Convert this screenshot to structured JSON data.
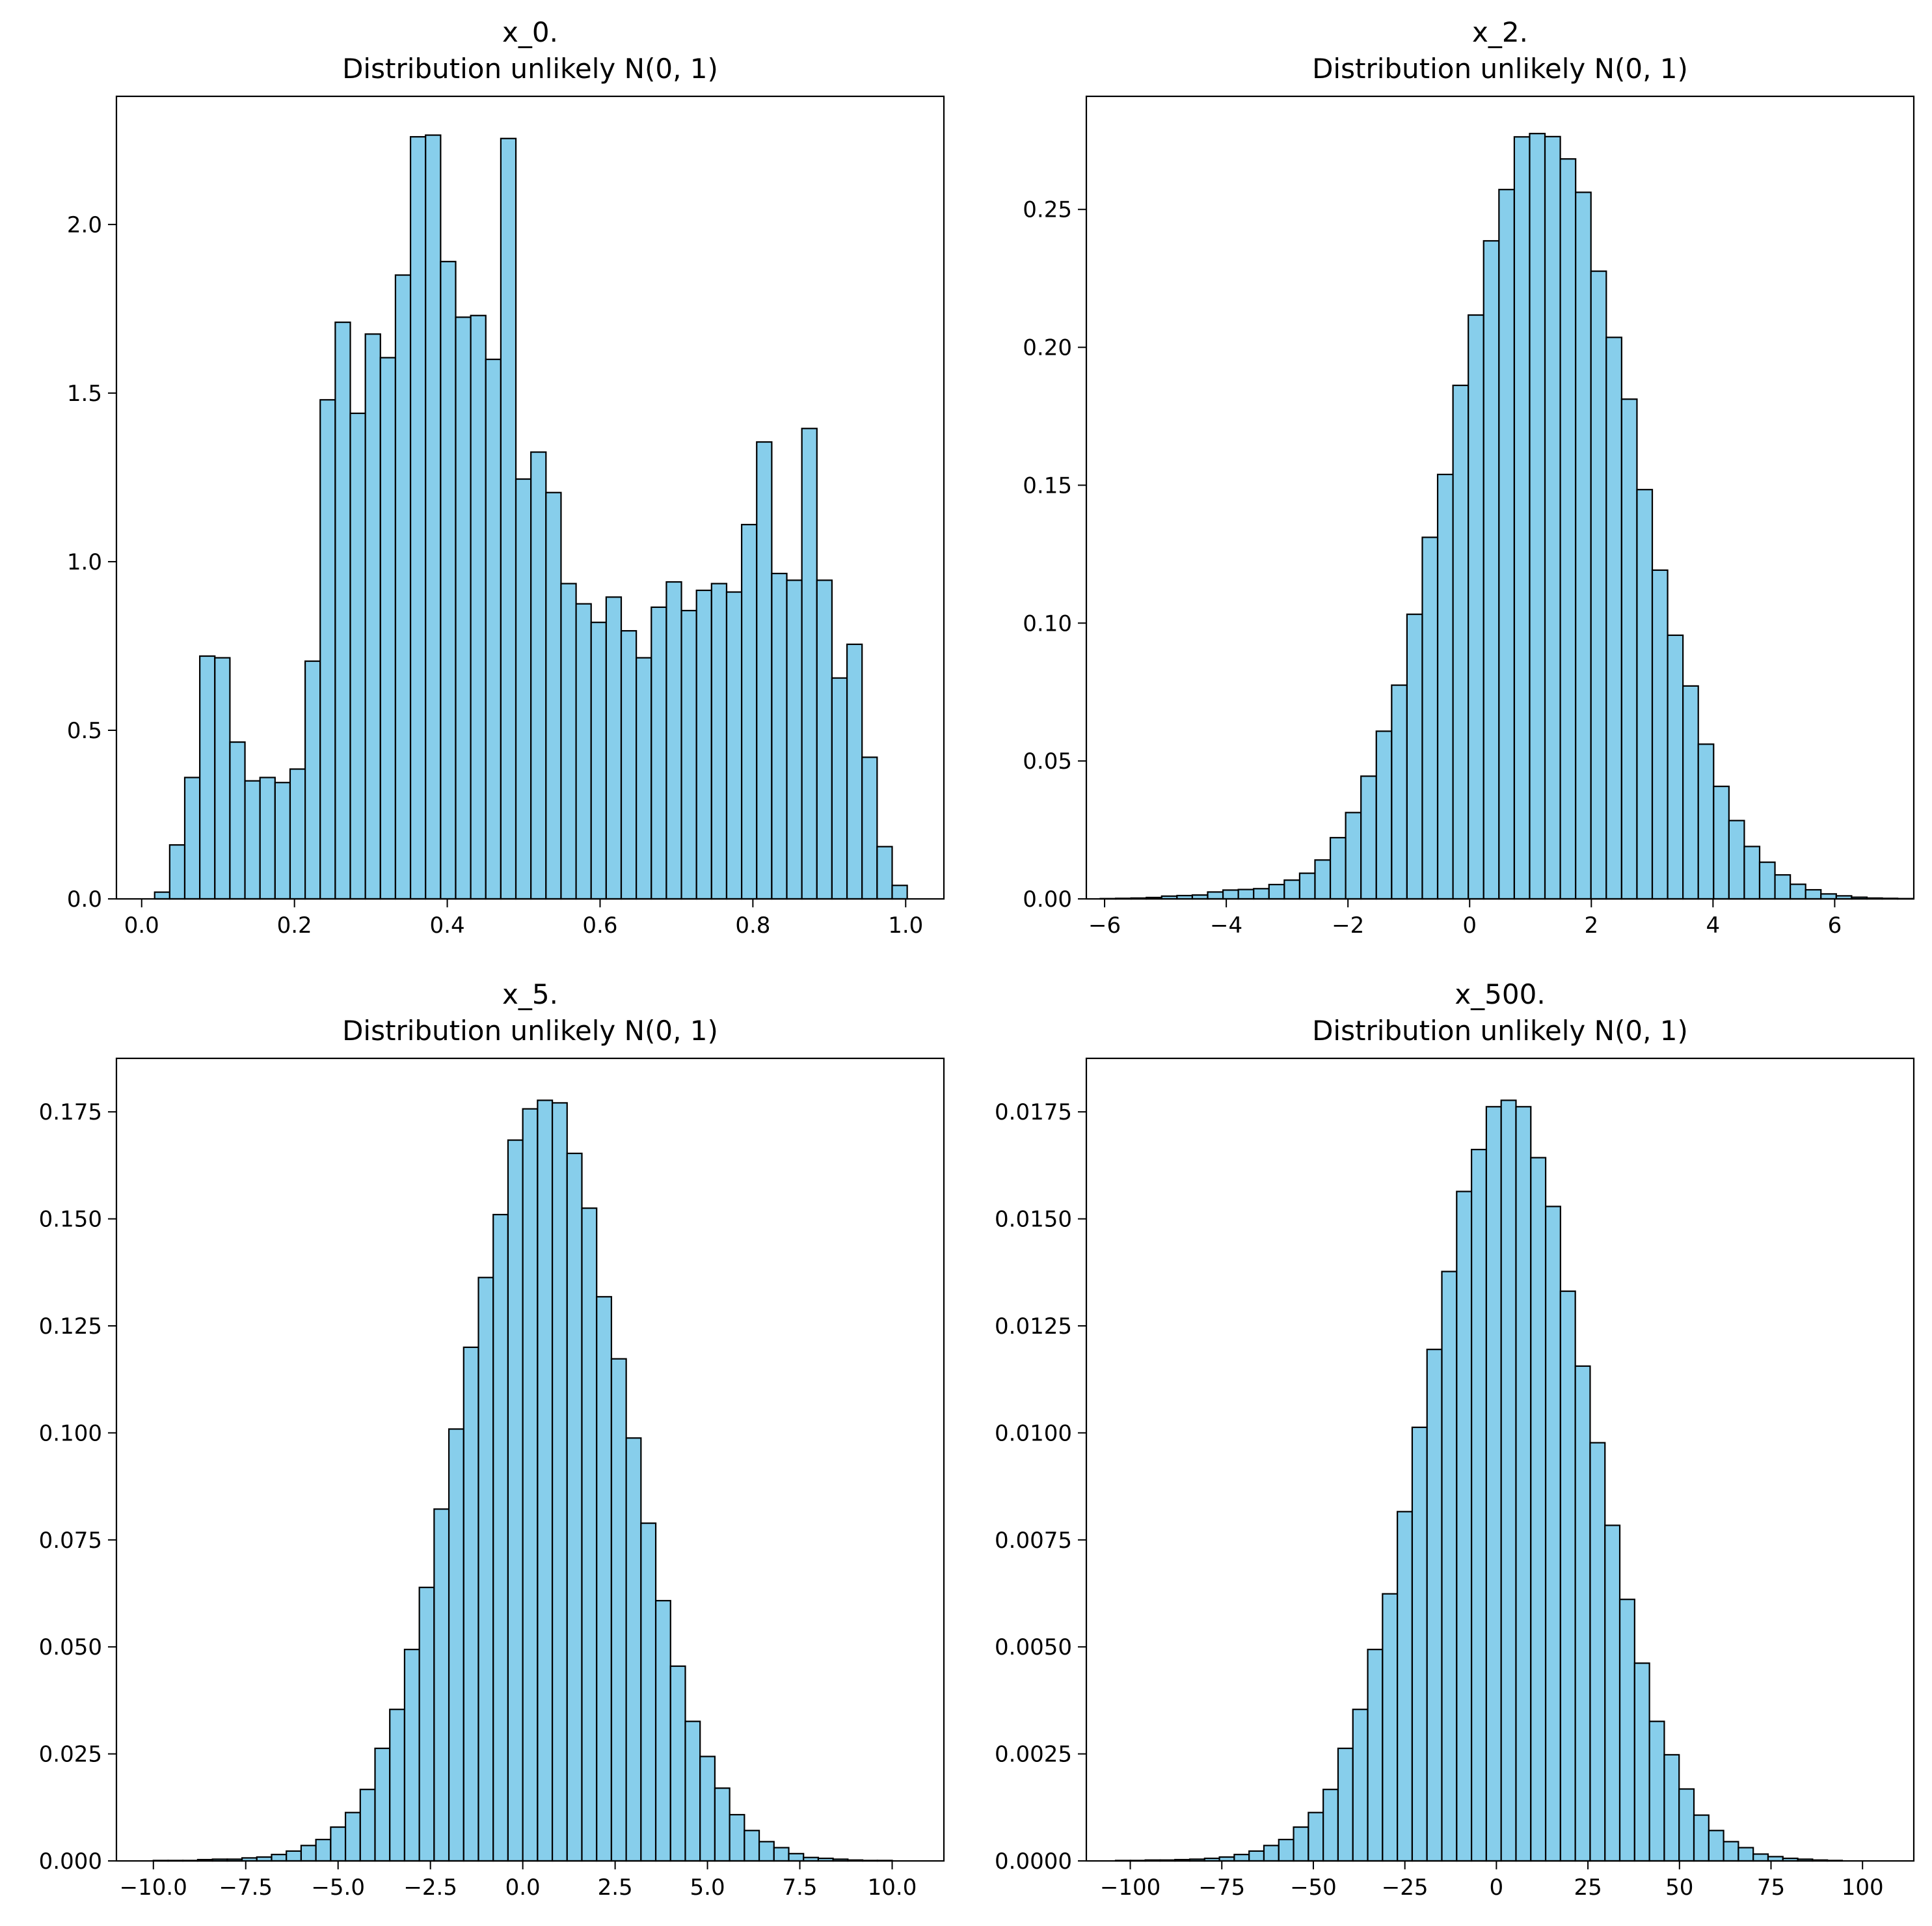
{
  "chart_data": [
    {
      "type": "bar",
      "title_line1": "x_0.",
      "title_line2": "Distribution unlikely N(0, 1)",
      "xlabel": "",
      "ylabel": "",
      "xlim": [
        -0.033,
        1.05
      ],
      "ylim": [
        0,
        2.38
      ],
      "xticks": [
        0.0,
        0.2,
        0.4,
        0.6,
        0.8,
        1.0
      ],
      "xtick_labels": [
        "0.0",
        "0.2",
        "0.4",
        "0.6",
        "0.8",
        "1.0"
      ],
      "yticks": [
        0.0,
        0.5,
        1.0,
        1.5,
        2.0
      ],
      "ytick_labels": [
        "0.0",
        "0.5",
        "1.0",
        "1.5",
        "2.0"
      ],
      "bin_start": 0.017,
      "bin_width": 0.0197,
      "values": [
        0.02,
        0.16,
        0.36,
        0.72,
        0.715,
        0.465,
        0.35,
        0.36,
        0.345,
        0.385,
        0.705,
        1.48,
        1.71,
        1.44,
        1.675,
        1.605,
        1.85,
        2.26,
        2.265,
        1.89,
        1.725,
        1.73,
        1.6,
        2.255,
        1.245,
        1.325,
        1.205,
        0.935,
        0.875,
        0.82,
        0.895,
        0.795,
        0.715,
        0.865,
        0.94,
        0.855,
        0.915,
        0.935,
        0.91,
        1.11,
        1.355,
        0.965,
        0.945,
        1.395,
        0.945,
        0.655,
        0.755,
        0.42,
        0.155,
        0.04
      ],
      "bar_color": "#87ceeb",
      "edge_color": "#000000",
      "grid": false,
      "legend": "none"
    },
    {
      "type": "bar",
      "title_line1": "x_2.",
      "title_line2": "Distribution unlikely N(0, 1)",
      "xlabel": "",
      "ylabel": "",
      "xlim": [
        -6.3,
        7.3
      ],
      "ylim": [
        0,
        0.291
      ],
      "xticks": [
        -6,
        -4,
        -2,
        0,
        2,
        4,
        6
      ],
      "xtick_labels": [
        "−6",
        "−4",
        "−2",
        "0",
        "2",
        "4",
        "6"
      ],
      "yticks": [
        0.0,
        0.05,
        0.1,
        0.15,
        0.2,
        0.25
      ],
      "ytick_labels": [
        "0.00",
        "0.05",
        "0.10",
        "0.15",
        "0.20",
        "0.25"
      ],
      "bin_start": -6.07,
      "bin_width": 0.252,
      "values": [
        0.0001,
        0.0002,
        0.0003,
        0.0005,
        0.001,
        0.0012,
        0.0014,
        0.0025,
        0.0032,
        0.0034,
        0.0037,
        0.0052,
        0.0068,
        0.0093,
        0.0141,
        0.0222,
        0.0313,
        0.0445,
        0.0608,
        0.0775,
        0.1032,
        0.1311,
        0.1539,
        0.1862,
        0.2117,
        0.2386,
        0.2572,
        0.2763,
        0.2775,
        0.2764,
        0.2683,
        0.2562,
        0.2276,
        0.2036,
        0.1812,
        0.1484,
        0.1192,
        0.0956,
        0.0772,
        0.0561,
        0.0408,
        0.0284,
        0.019,
        0.0133,
        0.0087,
        0.0053,
        0.0033,
        0.0018,
        0.0011,
        0.0006,
        0.0003,
        0.0002,
        0.0001
      ],
      "bar_color": "#87ceeb",
      "edge_color": "#000000",
      "grid": false,
      "legend": "none"
    },
    {
      "type": "bar",
      "title_line1": "x_5.",
      "title_line2": "Distribution unlikely N(0, 1)",
      "xlabel": "",
      "ylabel": "",
      "xlim": [
        -11.0,
        11.4
      ],
      "ylim": [
        0,
        0.1875
      ],
      "xticks": [
        -10.0,
        -7.5,
        -5.0,
        -2.5,
        0.0,
        2.5,
        5.0,
        7.5,
        10.0
      ],
      "xtick_labels": [
        "−10.0",
        "−7.5",
        "−5.0",
        "−2.5",
        "0.0",
        "2.5",
        "5.0",
        "7.5",
        "10.0"
      ],
      "yticks": [
        0.0,
        0.025,
        0.05,
        0.075,
        0.1,
        0.125,
        0.15,
        0.175
      ],
      "ytick_labels": [
        "0.000",
        "0.025",
        "0.050",
        "0.075",
        "0.100",
        "0.125",
        "0.150",
        "0.175"
      ],
      "bin_start": -10.0,
      "bin_width": 0.4,
      "values": [
        0.0001,
        0.0001,
        0.0001,
        0.0003,
        0.0004,
        0.0004,
        0.0007,
        0.0009,
        0.0015,
        0.0023,
        0.0036,
        0.005,
        0.0079,
        0.0113,
        0.0167,
        0.0263,
        0.0354,
        0.0494,
        0.0639,
        0.0822,
        0.1009,
        0.12,
        0.1363,
        0.151,
        0.1684,
        0.1757,
        0.1777,
        0.1771,
        0.1653,
        0.1525,
        0.1318,
        0.1173,
        0.0988,
        0.0789,
        0.0608,
        0.0455,
        0.0326,
        0.0244,
        0.017,
        0.0108,
        0.0071,
        0.0045,
        0.0031,
        0.0017,
        0.0008,
        0.0006,
        0.0004,
        0.0002,
        0.0001,
        0.0001
      ],
      "bar_color": "#87ceeb",
      "edge_color": "#000000",
      "grid": false,
      "legend": "none"
    },
    {
      "type": "bar",
      "title_line1": "x_500.",
      "title_line2": "Distribution unlikely N(0, 1)",
      "xlabel": "",
      "ylabel": "",
      "xlim": [
        -112,
        114
      ],
      "ylim": [
        0,
        0.01875
      ],
      "xticks": [
        -100,
        -75,
        -50,
        -25,
        0,
        25,
        50,
        75,
        100
      ],
      "xtick_labels": [
        "−100",
        "−75",
        "−50",
        "−25",
        "0",
        "25",
        "50",
        "75",
        "100"
      ],
      "yticks": [
        0.0,
        0.0025,
        0.005,
        0.0075,
        0.01,
        0.0125,
        0.015,
        0.0175
      ],
      "ytick_labels": [
        "0.0000",
        "0.0025",
        "0.0050",
        "0.0075",
        "0.0100",
        "0.0125",
        "0.0150",
        "0.0175"
      ],
      "bin_start": -104.0,
      "bin_width": 4.05,
      "values": [
        1e-05,
        1e-05,
        2e-05,
        2e-05,
        3e-05,
        4e-05,
        6e-05,
        9e-05,
        0.00015,
        0.00023,
        0.00036,
        0.0005,
        0.00079,
        0.00113,
        0.00167,
        0.00263,
        0.00354,
        0.00494,
        0.00624,
        0.00816,
        0.01013,
        0.01195,
        0.01377,
        0.01564,
        0.01662,
        0.01762,
        0.01777,
        0.01762,
        0.01643,
        0.01529,
        0.01331,
        0.01156,
        0.00977,
        0.00784,
        0.00611,
        0.00462,
        0.00326,
        0.00248,
        0.00168,
        0.00107,
        0.00071,
        0.00045,
        0.00031,
        0.00016,
        0.0001,
        6e-05,
        4e-05,
        2e-05,
        1e-05
      ],
      "bar_color": "#87ceeb",
      "edge_color": "#000000",
      "grid": false,
      "legend": "none"
    }
  ]
}
